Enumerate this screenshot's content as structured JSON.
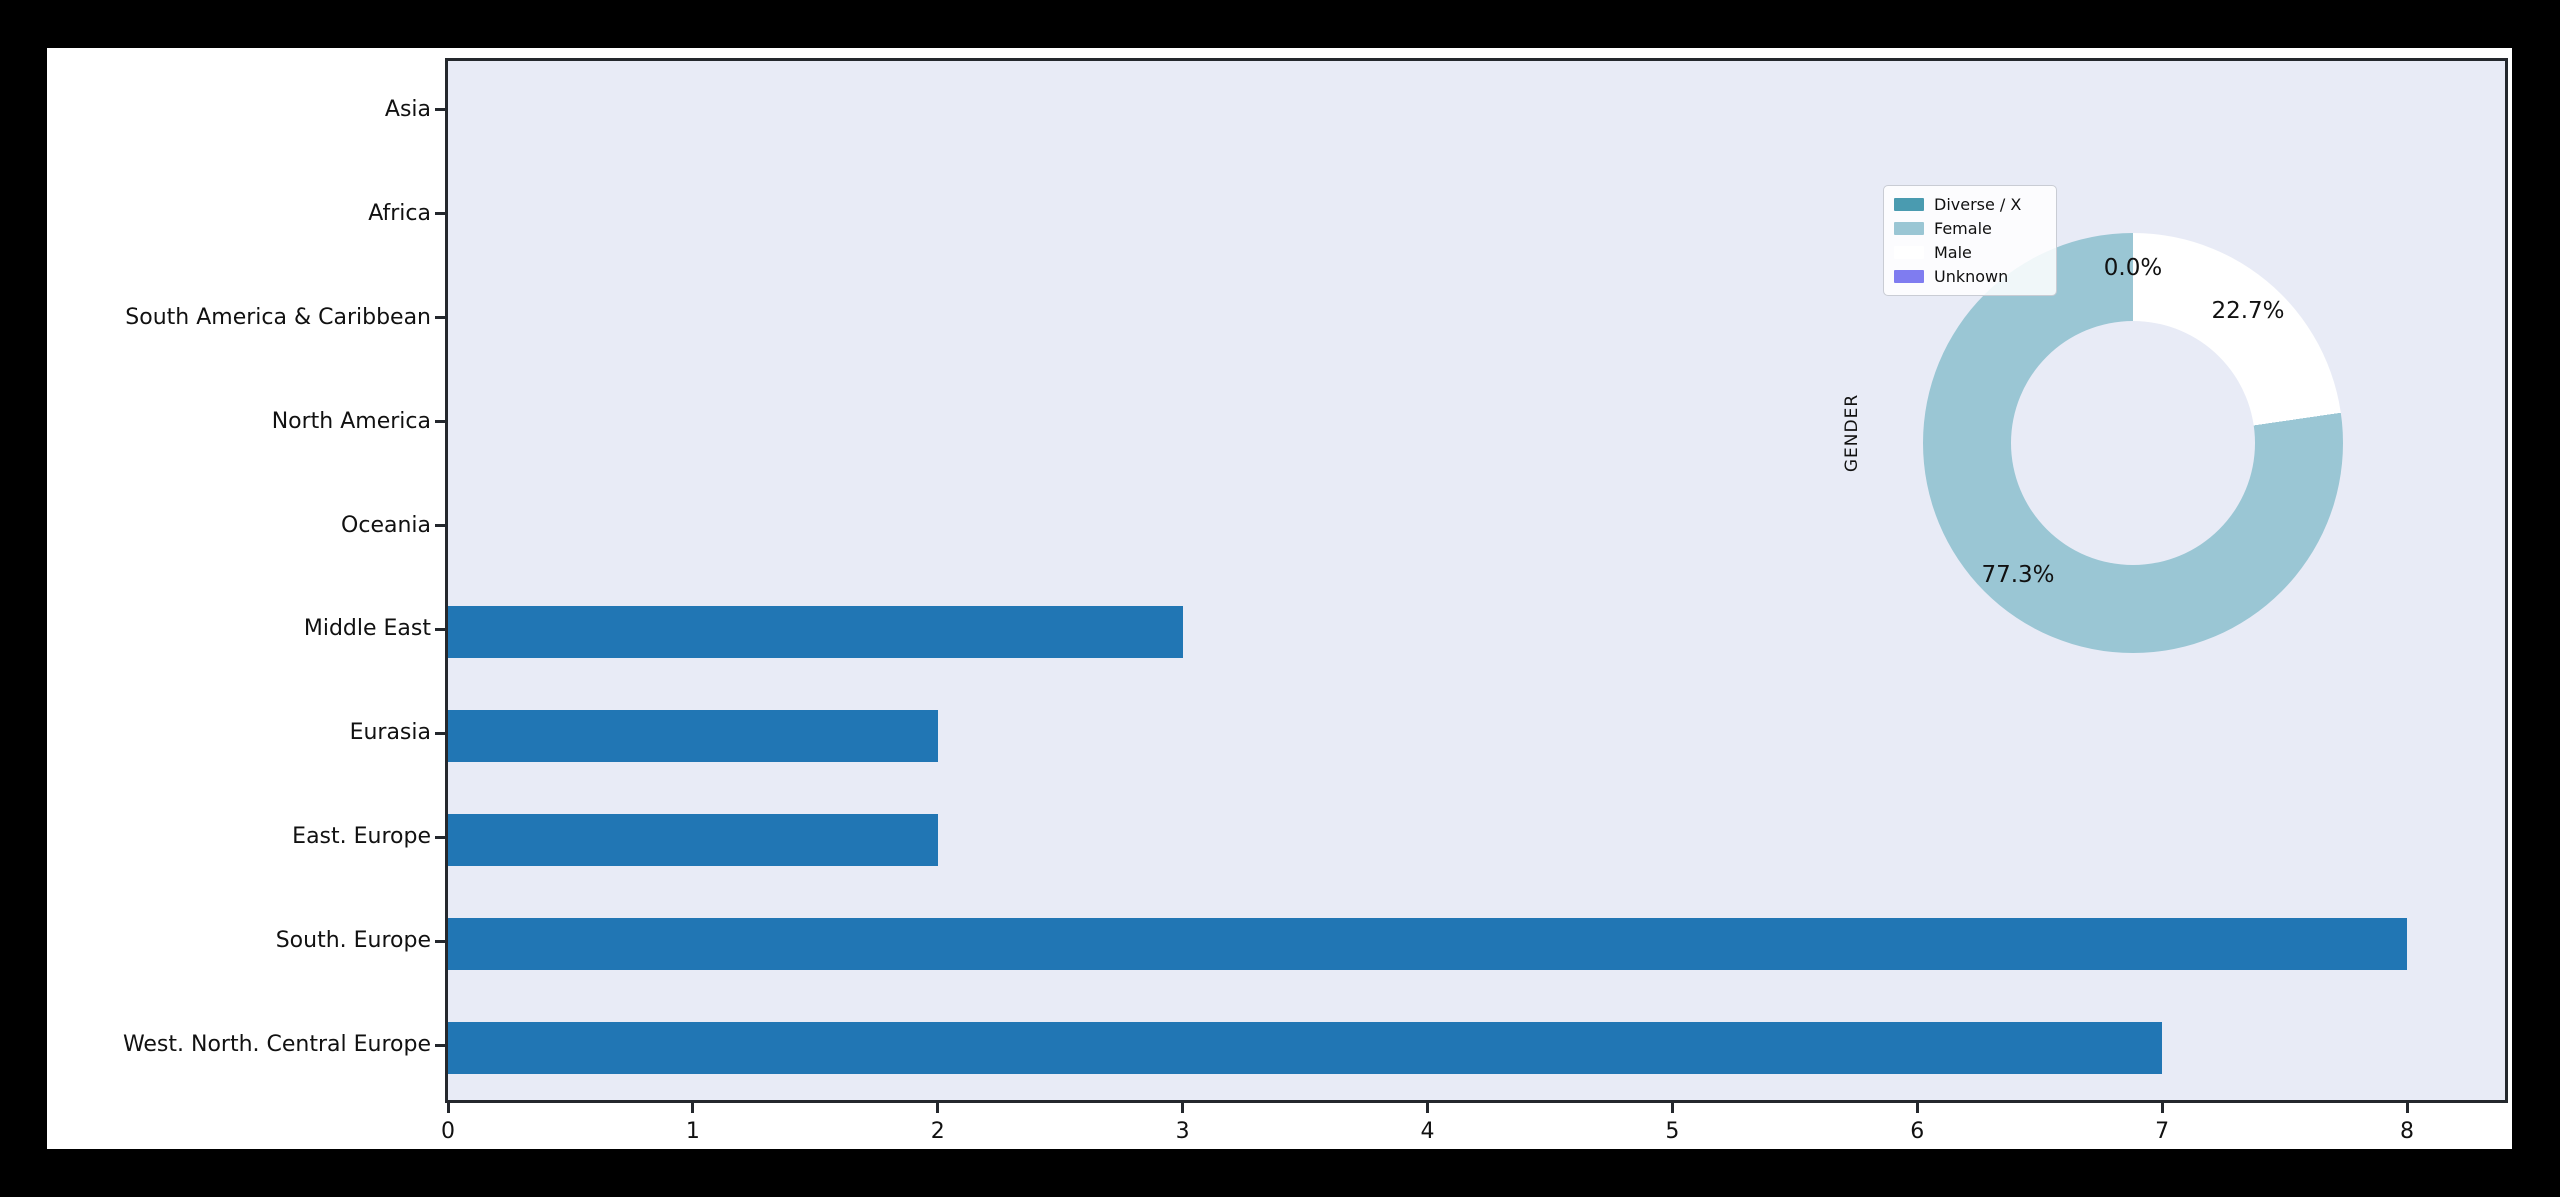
{
  "window": {
    "background_color": "#000000",
    "figure_background_color": "#ffffff"
  },
  "chart_data": [
    {
      "type": "bar",
      "orientation": "horizontal",
      "title": "",
      "xlabel": "",
      "ylabel": "",
      "categories": [
        "Asia",
        "Africa",
        "South America & Caribbean",
        "North America",
        "Oceania",
        "Middle East",
        "Eurasia",
        "East. Europe",
        "South. Europe",
        "West. North. Central Europe"
      ],
      "values": [
        0,
        0,
        0,
        0,
        0,
        3,
        2,
        2,
        8,
        7
      ],
      "xticks": [
        "0",
        "1",
        "2",
        "3",
        "4",
        "5",
        "6",
        "7",
        "8"
      ],
      "xtick_values": [
        0,
        1,
        2,
        3,
        4,
        5,
        6,
        7,
        8
      ],
      "xlim": [
        0,
        8.4
      ],
      "grid": false,
      "bar_color": "#2176b4",
      "plot_background_color": "#e8ebf6",
      "spine_color": "#24282d"
    },
    {
      "type": "pie",
      "donut": true,
      "title": "GENDER",
      "legend_position": "upper left",
      "start_angle_deg": 90,
      "counterclockwise": true,
      "slices": [
        {
          "label": "Diverse / X",
          "percent": 0.0,
          "color": "#4a9bb0"
        },
        {
          "label": "Female",
          "percent": 77.3,
          "color": "#9ac6d4"
        },
        {
          "label": "Male",
          "percent": 22.7,
          "color": "#ffffff"
        },
        {
          "label": "Unknown",
          "percent": 0.0,
          "color": "#7f7cf0"
        }
      ],
      "visible_pct_labels": [
        {
          "text": "0.0%",
          "anchor": "top"
        },
        {
          "text": "22.7%",
          "anchor": "upper-right"
        },
        {
          "text": "77.3%",
          "anchor": "lower-left"
        }
      ],
      "hole_color": "#e8ebf6"
    }
  ]
}
